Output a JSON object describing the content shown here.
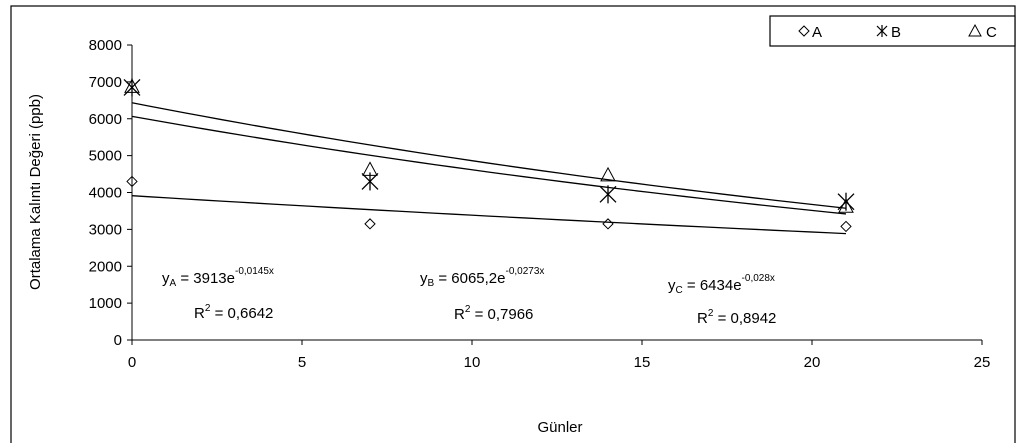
{
  "chart_data": {
    "type": "scatter",
    "xlabel": "Günler",
    "ylabel": "Ortalama Kalıntı Değeri (ppb)",
    "xlim": [
      0,
      25
    ],
    "ylim": [
      0,
      8000
    ],
    "x_ticks": [
      "0",
      "5",
      "10",
      "15",
      "20",
      "25"
    ],
    "y_ticks": [
      "0",
      "1000",
      "2000",
      "3000",
      "4000",
      "5000",
      "6000",
      "7000",
      "8000"
    ],
    "grid": false,
    "legend_position": "top-right",
    "series": [
      {
        "name": "A",
        "marker": "diamond",
        "x": [
          0,
          7,
          14,
          21
        ],
        "y": [
          4300,
          3150,
          3150,
          3080
        ],
        "trend": {
          "a": 3913,
          "b": -0.0145
        },
        "equation": {
          "lhs": "y",
          "sub": "A",
          "mid": " = 3913e",
          "exp": "-0,0145x",
          "r2_label": "R",
          "r2_sup": "2",
          "r2_value": " = 0,6642"
        }
      },
      {
        "name": "B",
        "marker": "asterisk",
        "x": [
          0,
          7,
          14,
          21
        ],
        "y": [
          6850,
          4300,
          3950,
          3750
        ],
        "trend": {
          "a": 6065.2,
          "b": -0.0273
        },
        "equation": {
          "lhs": "y",
          "sub": "B",
          "mid": " = 6065,2e",
          "exp": "-0,0273x",
          "r2_label": "R",
          "r2_sup": "2",
          "r2_value": " = 0,7966"
        }
      },
      {
        "name": "C",
        "marker": "triangle",
        "x": [
          0,
          7,
          14,
          21
        ],
        "y": [
          6850,
          4600,
          4450,
          3600
        ],
        "trend": {
          "a": 6434,
          "b": -0.028
        },
        "equation": {
          "lhs": "y",
          "sub": "C",
          "mid": " = 6434e",
          "exp": "-0,028x",
          "r2_label": "R",
          "r2_sup": "2",
          "r2_value": " = 0,8942"
        }
      }
    ],
    "colors": {
      "ink": "#000000",
      "background": "#ffffff"
    }
  }
}
